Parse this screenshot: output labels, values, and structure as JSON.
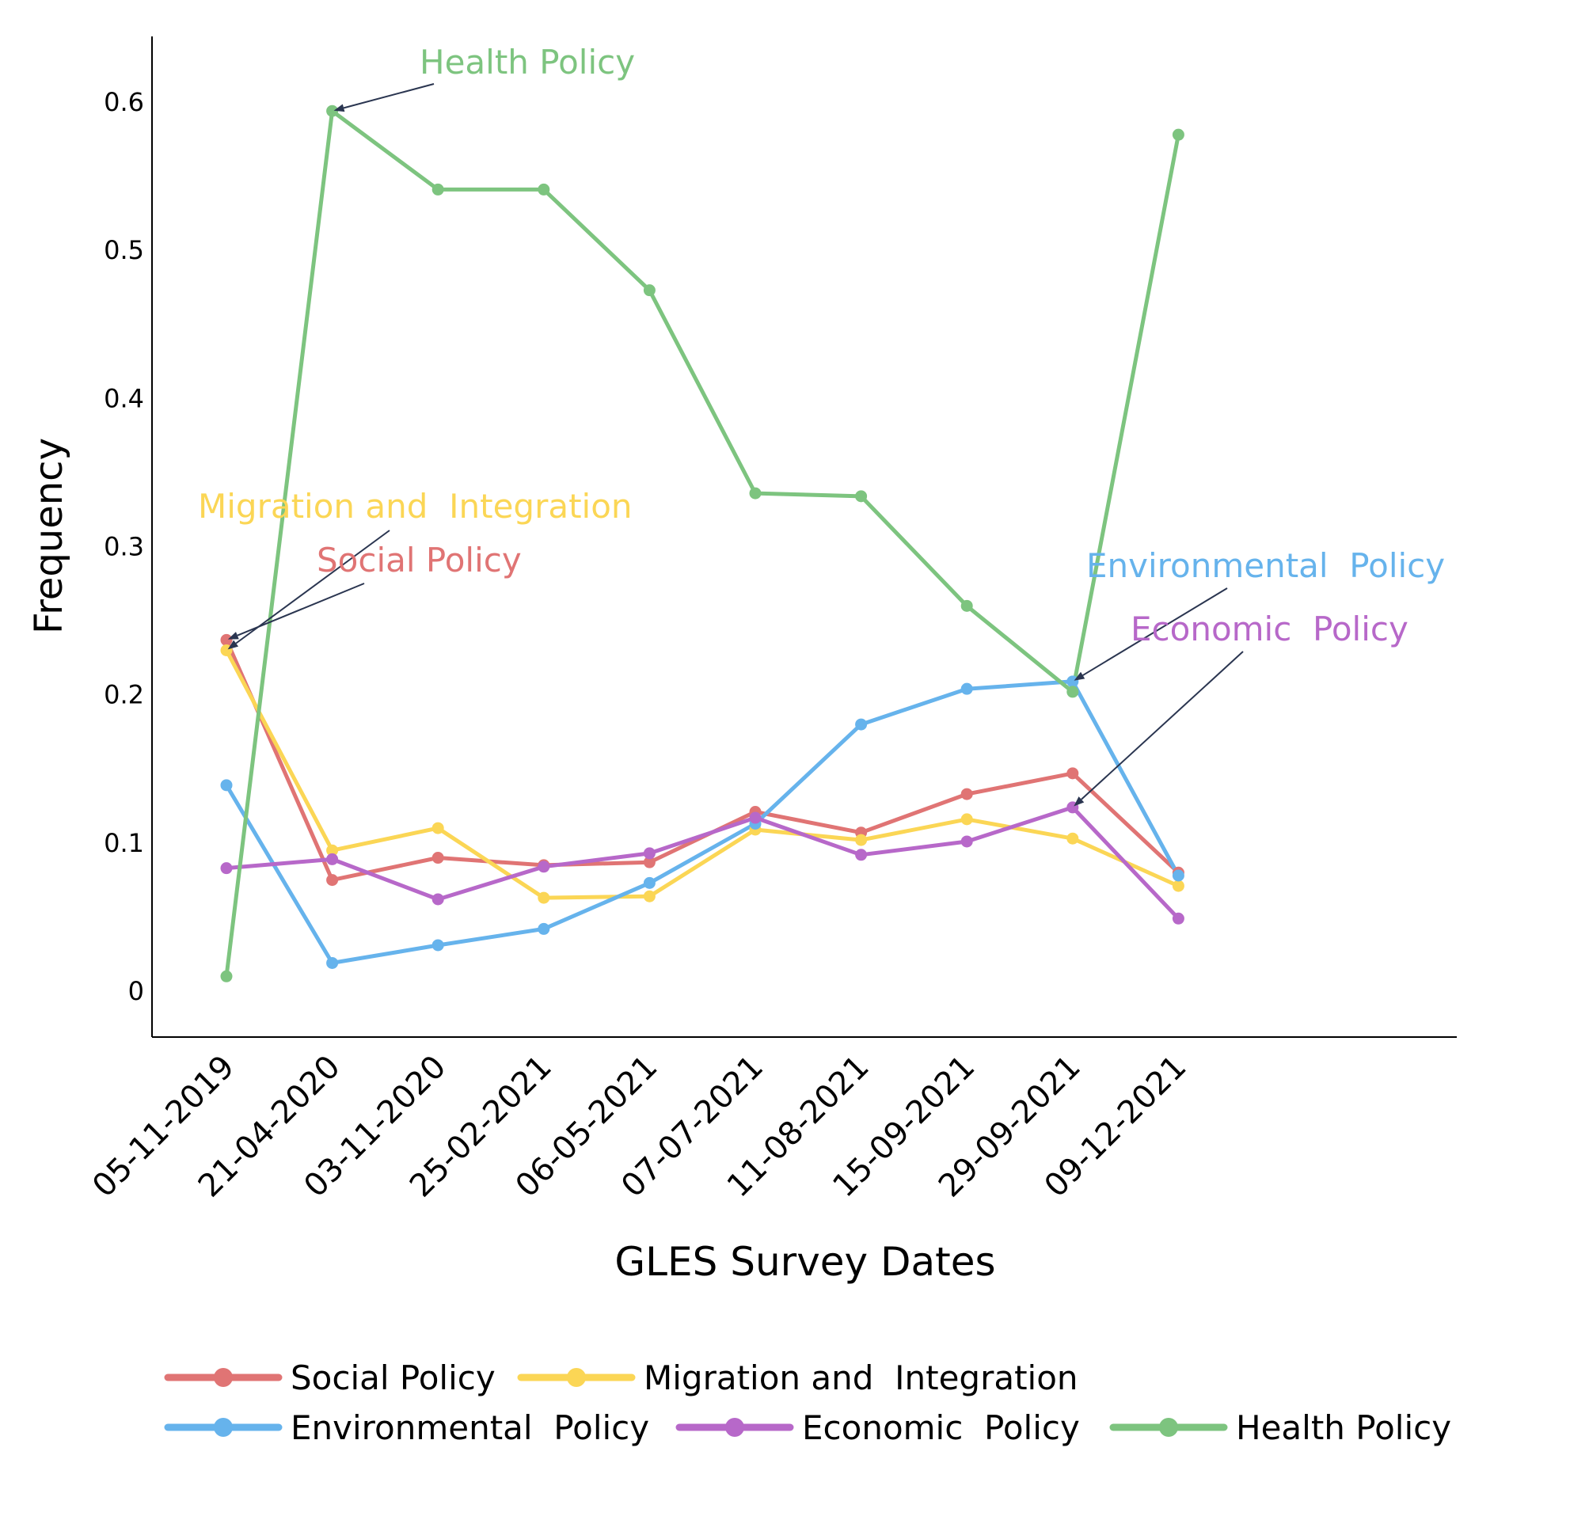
{
  "chart_data": {
    "type": "line",
    "xlabel": "GLES Survey Dates",
    "ylabel": "Frequency",
    "ylim": [
      -0.03,
      0.645
    ],
    "yticks": [
      0,
      0.1,
      0.2,
      0.3,
      0.4,
      0.5,
      0.6
    ],
    "ytick_labels": [
      "0",
      "0.1",
      "0.2",
      "0.3",
      "0.4",
      "0.5",
      "0.6"
    ],
    "grid": false,
    "categories": [
      "05-11-2019",
      "21-04-2020",
      "03-11-2020",
      "25-02-2021",
      "06-05-2021",
      "07-07-2021",
      "11-08-2021",
      "15-09-2021",
      "29-09-2021",
      "09-12-2021"
    ],
    "series": [
      {
        "name": "Social Policy",
        "color": "#e07474",
        "values": [
          0.237,
          0.075,
          0.09,
          0.085,
          0.087,
          0.121,
          0.107,
          0.133,
          0.147,
          0.08
        ]
      },
      {
        "name": "Migration and  Integration",
        "color": "#fbd655",
        "values": [
          0.23,
          0.095,
          0.11,
          0.063,
          0.064,
          0.109,
          0.102,
          0.116,
          0.103,
          0.071
        ]
      },
      {
        "name": "Environmental  Policy",
        "color": "#66b3ec",
        "values": [
          0.139,
          0.019,
          0.031,
          0.042,
          0.073,
          0.113,
          0.18,
          0.204,
          0.209,
          0.078
        ]
      },
      {
        "name": "Economic  Policy",
        "color": "#b768c9",
        "values": [
          0.083,
          0.089,
          0.062,
          0.084,
          0.093,
          0.117,
          0.092,
          0.101,
          0.124,
          0.049
        ]
      },
      {
        "name": "Health Policy",
        "color": "#7dc47f",
        "values": [
          0.01,
          0.594,
          0.541,
          0.541,
          0.473,
          0.336,
          0.334,
          0.26,
          0.202,
          0.578
        ]
      }
    ],
    "annotations": [
      {
        "text": "Health Policy",
        "series": 4,
        "point": 1
      },
      {
        "text": "Migration and  Integration",
        "series": 1,
        "point": 0
      },
      {
        "text": "Social Policy",
        "series": 0,
        "point": 0
      },
      {
        "text": "Environmental  Policy",
        "series": 2,
        "point": 8
      },
      {
        "text": "Economic  Policy",
        "series": 3,
        "point": 8
      }
    ],
    "legend": {
      "position": "bottom",
      "rows": [
        [
          0,
          1
        ],
        [
          2,
          3,
          4
        ]
      ]
    }
  }
}
